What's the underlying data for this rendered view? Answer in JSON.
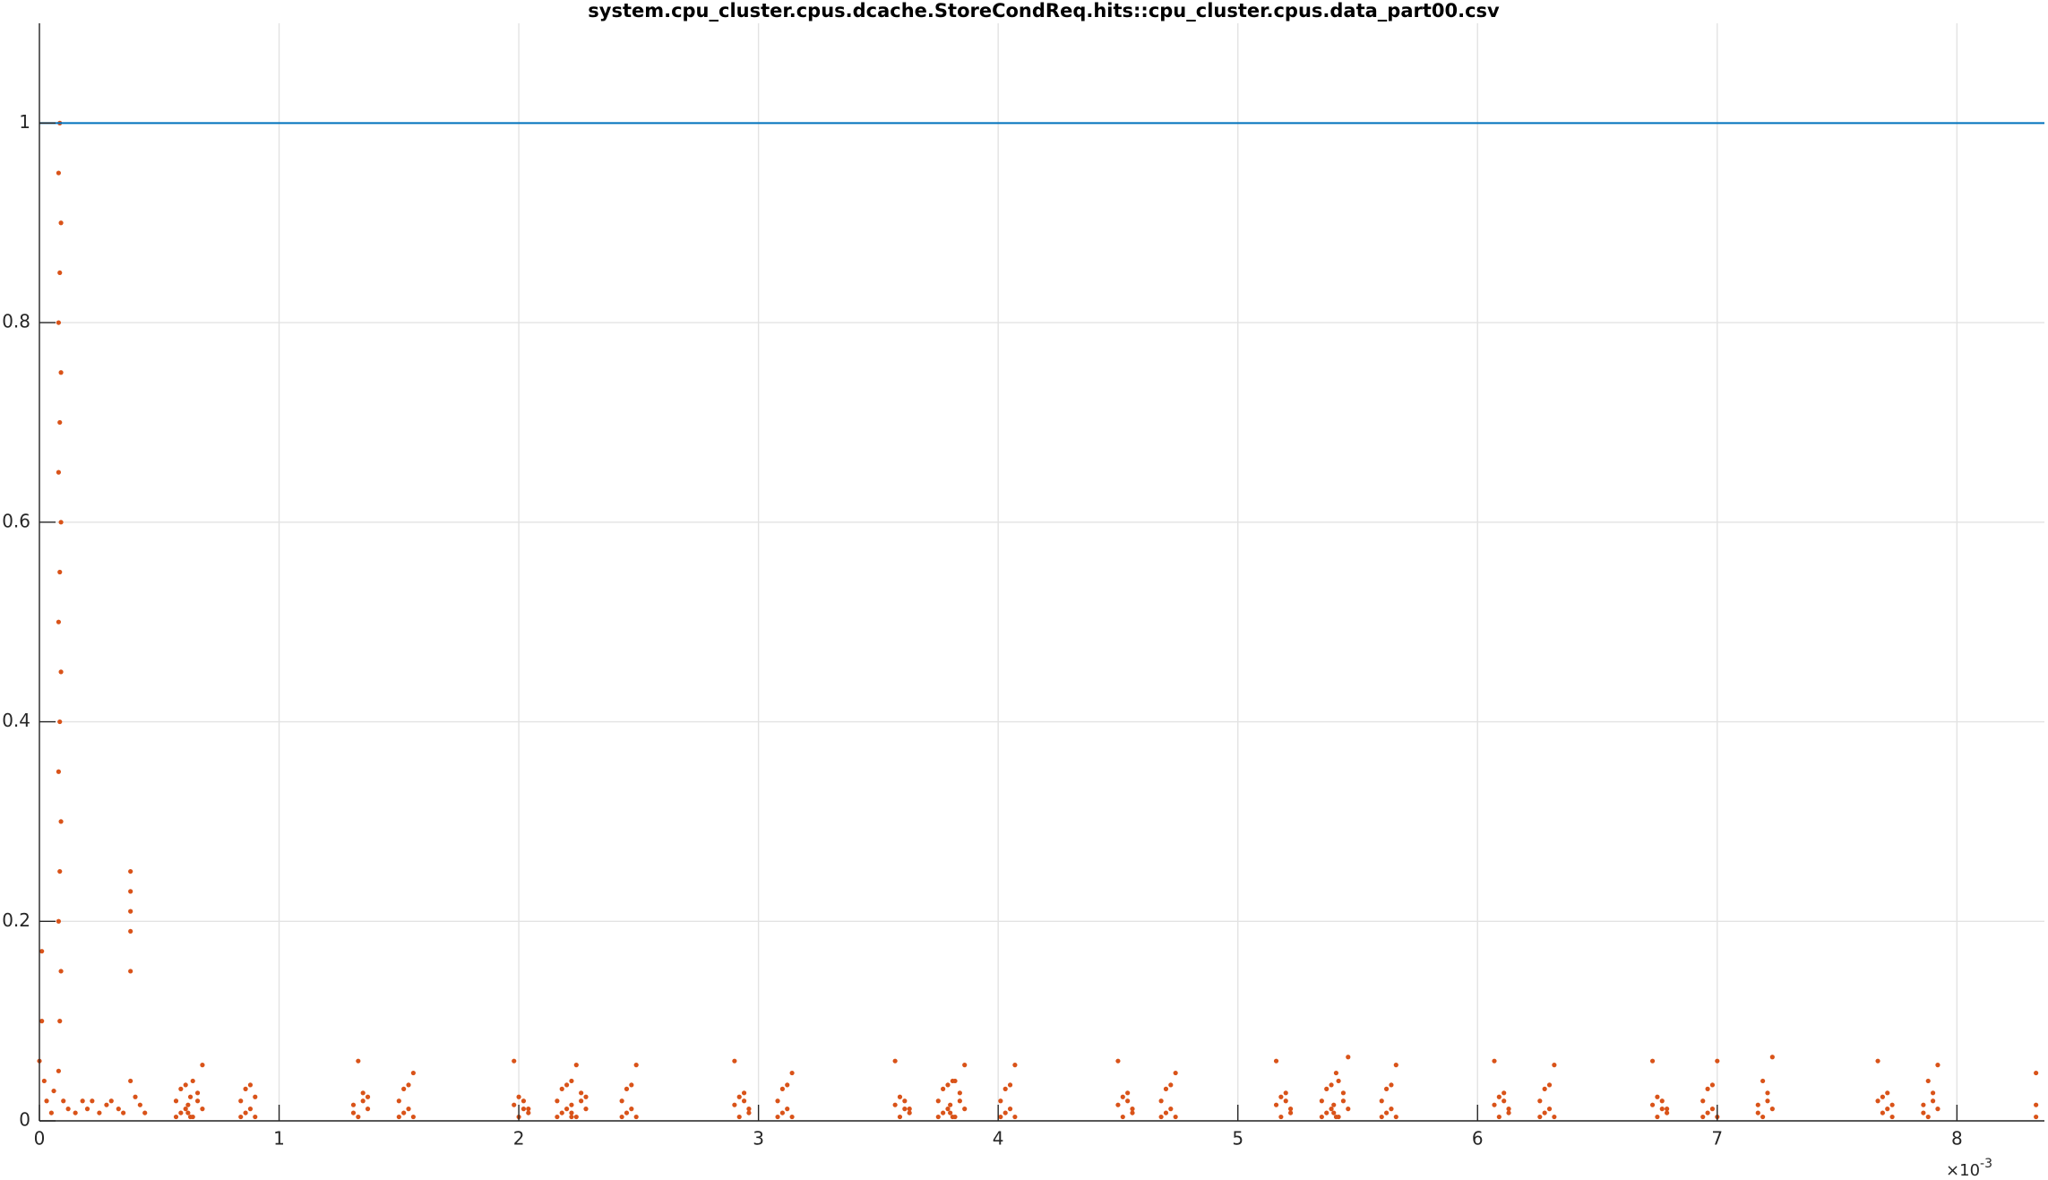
{
  "chart_data": {
    "type": "scatter",
    "title": "system.cpu_cluster.cpus.dcache.StoreCondReq.hits::cpu_cluster.cpus.data_part00.csv",
    "xlim": [
      0,
      8.365
    ],
    "ylim": [
      0,
      1.1
    ],
    "xticks": [
      0,
      1,
      2,
      3,
      4,
      5,
      6,
      7,
      8
    ],
    "yticks": [
      0,
      0.2,
      0.4,
      0.6,
      0.8,
      1
    ],
    "x_multiplier": {
      "base": "×10",
      "exponent": "-3"
    },
    "grid": true,
    "series": [
      {
        "type": "scatter",
        "color": "#d95319",
        "x": [
          0,
          0.01,
          0.01,
          0.02,
          0.03,
          0.05,
          0.06,
          0.1,
          0.12,
          0.15,
          0.18,
          0.2,
          0.22,
          0.25,
          0.28,
          0.3,
          0.33,
          0.35,
          0.38,
          0.4,
          0.42,
          0.44,
          0.08,
          0.085,
          0.09,
          0.08,
          0.085,
          0.09,
          0.08,
          0.085,
          0.09,
          0.08,
          0.085,
          0.09,
          0.08,
          0.085,
          0.09,
          0.08,
          0.085,
          0.09,
          0.08,
          0.085,
          0.38,
          0.38,
          0.38,
          0.38,
          0.38,
          0.57,
          0.57,
          0.59,
          0.59,
          0.61,
          0.61,
          0.63,
          0.63,
          0.62,
          0.62,
          0.64,
          0.64,
          0.66,
          0.66,
          0.68,
          0.68,
          0.84,
          0.84,
          0.86,
          0.86,
          0.88,
          0.88,
          0.9,
          0.9,
          1.31,
          1.31,
          1.33,
          1.33,
          1.35,
          1.35,
          1.37,
          1.37,
          1.5,
          1.5,
          1.52,
          1.52,
          1.54,
          1.54,
          1.56,
          1.56,
          1.98,
          1.98,
          2,
          2,
          2.02,
          2.02,
          2.04,
          2.04,
          2.16,
          2.16,
          2.18,
          2.18,
          2.2,
          2.2,
          2.22,
          2.22,
          2.22,
          2.22,
          2.24,
          2.24,
          2.26,
          2.26,
          2.28,
          2.28,
          2.43,
          2.43,
          2.45,
          2.45,
          2.47,
          2.47,
          2.49,
          2.49,
          2.9,
          2.9,
          2.92,
          2.92,
          2.94,
          2.94,
          2.96,
          2.96,
          3.08,
          3.08,
          3.1,
          3.1,
          3.12,
          3.12,
          3.14,
          3.14,
          3.57,
          3.57,
          3.59,
          3.59,
          3.61,
          3.61,
          3.63,
          3.63,
          3.75,
          3.75,
          3.77,
          3.77,
          3.79,
          3.79,
          3.81,
          3.81,
          3.8,
          3.8,
          3.82,
          3.82,
          3.84,
          3.84,
          3.86,
          3.86,
          4.01,
          4.01,
          4.03,
          4.03,
          4.05,
          4.05,
          4.07,
          4.07,
          4.5,
          4.5,
          4.52,
          4.52,
          4.54,
          4.54,
          4.56,
          4.56,
          4.68,
          4.68,
          4.7,
          4.7,
          4.72,
          4.72,
          4.74,
          4.74,
          5.16,
          5.16,
          5.18,
          5.18,
          5.2,
          5.2,
          5.22,
          5.22,
          5.35,
          5.35,
          5.37,
          5.37,
          5.39,
          5.39,
          5.41,
          5.41,
          5.4,
          5.4,
          5.42,
          5.42,
          5.44,
          5.44,
          5.46,
          5.46,
          5.6,
          5.6,
          5.62,
          5.62,
          5.64,
          5.64,
          5.66,
          5.66,
          6.07,
          6.07,
          6.09,
          6.09,
          6.11,
          6.11,
          6.13,
          6.13,
          6.26,
          6.26,
          6.28,
          6.28,
          6.3,
          6.3,
          6.32,
          6.32,
          6.73,
          6.73,
          6.75,
          6.75,
          6.77,
          6.77,
          6.79,
          6.79,
          6.94,
          6.94,
          6.96,
          6.96,
          6.98,
          6.98,
          7,
          7,
          7.17,
          7.17,
          7.19,
          7.19,
          7.21,
          7.21,
          7.23,
          7.23,
          7.67,
          7.67,
          7.69,
          7.69,
          7.71,
          7.71,
          7.73,
          7.73,
          7.86,
          7.86,
          7.88,
          7.88,
          7.9,
          7.9,
          7.92,
          7.92,
          8.33,
          8.33,
          8.33
        ],
        "values": [
          0.06,
          0.17,
          0.1,
          0.04,
          0.02,
          0.008,
          0.03,
          0.02,
          0.012,
          0.008,
          0.02,
          0.012,
          0.02,
          0.008,
          0.016,
          0.02,
          0.012,
          0.008,
          0.04,
          0.024,
          0.016,
          0.008,
          0.05,
          0.1,
          0.15,
          0.2,
          0.25,
          0.3,
          0.35,
          0.4,
          0.45,
          0.5,
          0.55,
          0.6,
          0.65,
          0.7,
          0.75,
          0.8,
          0.85,
          0.9,
          0.95,
          1,
          0.15,
          0.19,
          0.21,
          0.23,
          0.25,
          0.004,
          0.02,
          0.008,
          0.032,
          0.012,
          0.036,
          0.004,
          0.024,
          0.008,
          0.016,
          0.004,
          0.04,
          0.02,
          0.028,
          0.012,
          0.056,
          0.004,
          0.02,
          0.008,
          0.032,
          0.012,
          0.036,
          0.004,
          0.024,
          0.008,
          0.016,
          0.004,
          0.06,
          0.02,
          0.028,
          0.012,
          0.024,
          0.004,
          0.02,
          0.008,
          0.032,
          0.012,
          0.036,
          0.004,
          0.048,
          0.06,
          0.016,
          0.004,
          0.024,
          0.02,
          0.012,
          0.012,
          0.008,
          0.004,
          0.02,
          0.008,
          0.032,
          0.012,
          0.036,
          0.004,
          0.04,
          0.008,
          0.016,
          0.004,
          0.056,
          0.02,
          0.028,
          0.012,
          0.024,
          0.004,
          0.02,
          0.008,
          0.032,
          0.012,
          0.036,
          0.004,
          0.056,
          0.06,
          0.016,
          0.004,
          0.024,
          0.02,
          0.028,
          0.012,
          0.008,
          0.004,
          0.02,
          0.008,
          0.032,
          0.012,
          0.036,
          0.004,
          0.048,
          0.06,
          0.016,
          0.004,
          0.024,
          0.02,
          0.012,
          0.012,
          0.008,
          0.004,
          0.02,
          0.008,
          0.032,
          0.012,
          0.036,
          0.004,
          0.04,
          0.008,
          0.016,
          0.004,
          0.04,
          0.02,
          0.028,
          0.012,
          0.056,
          0.004,
          0.02,
          0.008,
          0.032,
          0.012,
          0.036,
          0.004,
          0.056,
          0.06,
          0.016,
          0.004,
          0.024,
          0.02,
          0.028,
          0.012,
          0.008,
          0.004,
          0.02,
          0.008,
          0.032,
          0.012,
          0.036,
          0.004,
          0.048,
          0.06,
          0.016,
          0.004,
          0.024,
          0.02,
          0.028,
          0.012,
          0.008,
          0.004,
          0.02,
          0.008,
          0.032,
          0.012,
          0.036,
          0.004,
          0.048,
          0.008,
          0.016,
          0.004,
          0.04,
          0.02,
          0.028,
          0.012,
          0.064,
          0.004,
          0.02,
          0.008,
          0.032,
          0.012,
          0.036,
          0.004,
          0.056,
          0.06,
          0.016,
          0.004,
          0.024,
          0.02,
          0.028,
          0.012,
          0.008,
          0.004,
          0.02,
          0.008,
          0.032,
          0.012,
          0.036,
          0.004,
          0.056,
          0.06,
          0.016,
          0.004,
          0.024,
          0.02,
          0.012,
          0.012,
          0.008,
          0.004,
          0.02,
          0.008,
          0.032,
          0.012,
          0.036,
          0.004,
          0.06,
          0.008,
          0.016,
          0.004,
          0.04,
          0.02,
          0.028,
          0.012,
          0.064,
          0.06,
          0.02,
          0.008,
          0.024,
          0.012,
          0.028,
          0.004,
          0.016,
          0.008,
          0.016,
          0.004,
          0.04,
          0.02,
          0.028,
          0.012,
          0.056,
          0.004,
          0.016,
          0.048
        ]
      },
      {
        "type": "line",
        "color": "#0072bd",
        "x": [
          0,
          8.365
        ],
        "values": [
          1,
          1
        ]
      }
    ]
  }
}
